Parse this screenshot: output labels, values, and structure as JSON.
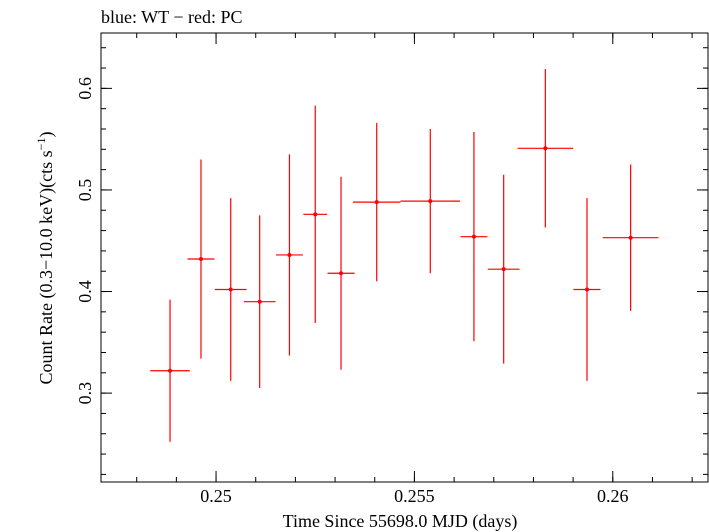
{
  "chart_data": {
    "type": "scatter",
    "title": "blue: WT − red: PC",
    "xlabel": "Time Since 55698.0 MJD (days)",
    "ylabel_main": "Count Rate (0.3−10.0 keV)(cts s",
    "ylabel_sup": "−1",
    "ylabel_close": ")",
    "xlim": [
      0.2471,
      0.2624
    ],
    "ylim": [
      0.2125,
      0.6545
    ],
    "grid": false,
    "x_ticks": [
      {
        "value": 0.25,
        "label": "0.25"
      },
      {
        "value": 0.255,
        "label": "0.255"
      },
      {
        "value": 0.26,
        "label": "0.26"
      }
    ],
    "x_minor_step": 0.001,
    "y_ticks": [
      {
        "value": 0.3,
        "label": "0.3"
      },
      {
        "value": 0.4,
        "label": "0.4"
      },
      {
        "value": 0.5,
        "label": "0.5"
      },
      {
        "value": 0.6,
        "label": "0.6"
      }
    ],
    "y_minor_step": 0.02,
    "series": [
      {
        "color": "#ff0000",
        "points": [
          {
            "x": 0.24884,
            "xerr": 0.0005,
            "y": 0.322,
            "yerr": 0.07
          },
          {
            "x": 0.24962,
            "xerr": 0.00034,
            "y": 0.432,
            "yerr": 0.098
          },
          {
            "x": 0.25037,
            "xerr": 0.0004,
            "y": 0.402,
            "yerr": 0.09
          },
          {
            "x": 0.2511,
            "xerr": 0.0004,
            "y": 0.39,
            "yerr": 0.085
          },
          {
            "x": 0.25185,
            "xerr": 0.00034,
            "y": 0.436,
            "yerr": 0.099
          },
          {
            "x": 0.2525,
            "xerr": 0.0003,
            "y": 0.476,
            "yerr": 0.107
          },
          {
            "x": 0.25315,
            "xerr": 0.00034,
            "y": 0.418,
            "yerr": 0.095
          },
          {
            "x": 0.25405,
            "xerr": 0.0006,
            "y": 0.488,
            "yerr": 0.078
          },
          {
            "x": 0.2554,
            "xerr": 0.00075,
            "y": 0.489,
            "yerr": 0.071
          },
          {
            "x": 0.2565,
            "xerr": 0.00034,
            "y": 0.454,
            "yerr": 0.103
          },
          {
            "x": 0.25725,
            "xerr": 0.0004,
            "y": 0.422,
            "yerr": 0.093
          },
          {
            "x": 0.2583,
            "xerr": 0.0007,
            "y": 0.541,
            "yerr": 0.078
          },
          {
            "x": 0.25935,
            "xerr": 0.00034,
            "y": 0.402,
            "yerr": 0.09
          },
          {
            "x": 0.26045,
            "xerr": 0.0007,
            "y": 0.453,
            "yerr": 0.072
          }
        ]
      }
    ]
  }
}
